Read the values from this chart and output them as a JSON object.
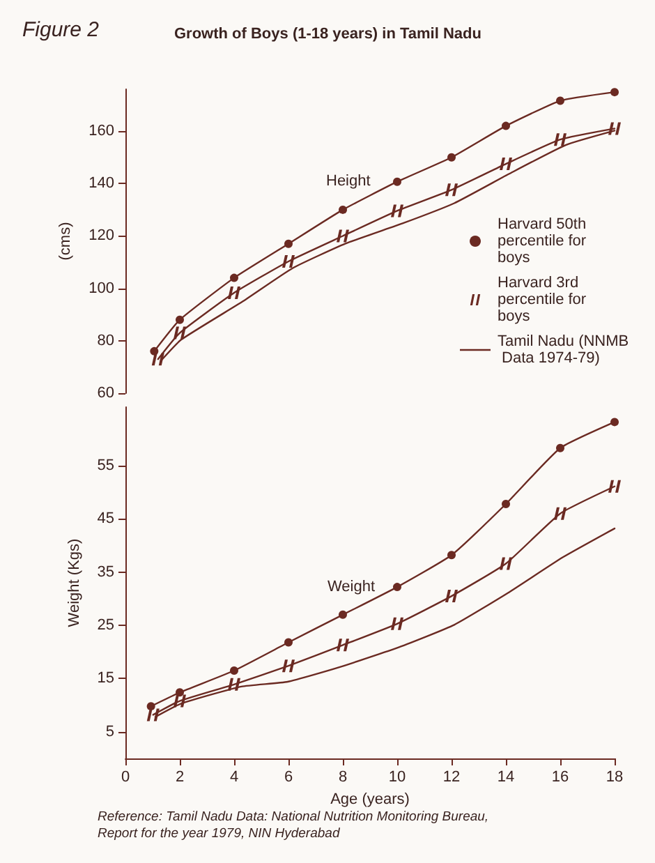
{
  "chart_data": [
    {
      "type": "line",
      "title": "Growth of Boys (1-18 years) in Tamil Nadu",
      "ylabel": "(cms)",
      "annotations": [
        "Figure 2",
        "Height"
      ],
      "xlim": [
        0,
        18
      ],
      "ylim": [
        60,
        176
      ],
      "yticks": [
        60,
        80,
        100,
        120,
        140,
        160
      ],
      "tick_labels": "y",
      "legend": "right",
      "line_style": "solid",
      "grid": false,
      "series": [
        {
          "name": "Harvard 50th percentile for boys",
          "color": "#6b2a22",
          "marker": "circle",
          "x": [
            1.06,
            2,
            4,
            6,
            8,
            10,
            12,
            14,
            16,
            18
          ],
          "values": [
            76,
            88,
            104,
            117,
            130,
            140.7,
            150,
            162,
            171.6,
            174.9
          ]
        },
        {
          "name": "Harvard 3rd percentile for boys",
          "color": "#6b2a22",
          "marker": "cross",
          "x": [
            1.2,
            2,
            4,
            6,
            8,
            10,
            12,
            14,
            16,
            18
          ],
          "values": [
            73,
            83,
            98.3,
            110.3,
            120,
            129.6,
            137.6,
            147.5,
            156.8,
            161
          ]
        },
        {
          "name": "Tamil Nadu (NNMB Data 1974-79)",
          "color": "#6b2a22",
          "marker": "none",
          "x": [
            1.3,
            2.05,
            4.3,
            6.15,
            8.1,
            10.2,
            12.1,
            14.1,
            16.2,
            18
          ],
          "values": [
            72.3,
            80.4,
            94.9,
            107.7,
            117.1,
            124.8,
            132.5,
            143.6,
            154.7,
            160.2
          ]
        }
      ]
    },
    {
      "type": "line",
      "xlabel": "Age (years)",
      "ylabel": "Weight (Kgs)",
      "annotations": [
        "Weight",
        "Reference: Tamil Nadu Data: National Nutrition Monitoring Bureau, Report for the year 1979, NIN Hyderabad"
      ],
      "xlim": [
        0,
        18
      ],
      "xticks": [
        0,
        2,
        4,
        6,
        8,
        10,
        12,
        14,
        16,
        18
      ],
      "ylim": [
        0,
        66
      ],
      "yticks": [
        5,
        15,
        25,
        35,
        45,
        55
      ],
      "line_style": "solid",
      "grid": false,
      "series": [
        {
          "color": "#6b2a22",
          "marker": "circle",
          "x": [
            0.94,
            2,
            4,
            6,
            8,
            10,
            12,
            14,
            16,
            18
          ],
          "values": [
            9.8,
            12.4,
            16.5,
            21.8,
            27,
            32.2,
            38.2,
            47.8,
            58.3,
            63.2
          ]
        },
        {
          "color": "#6b2a22",
          "marker": "cross",
          "x": [
            1.02,
            2,
            4,
            6,
            8,
            10,
            12,
            14,
            16,
            18
          ],
          "values": [
            8.2,
            10.8,
            13.9,
            17.4,
            21.3,
            25.3,
            30.5,
            36.6,
            46,
            51.1
          ]
        },
        {
          "color": "#6b2a22",
          "marker": "none",
          "x": [
            1.1,
            2.05,
            4.27,
            5.97,
            7.85,
            10.07,
            12.1,
            14.08,
            16.1,
            18
          ],
          "values": [
            7.8,
            10.3,
            13.5,
            14.4,
            17.1,
            20.9,
            25.1,
            31.1,
            37.8,
            43.2
          ]
        }
      ]
    }
  ]
}
